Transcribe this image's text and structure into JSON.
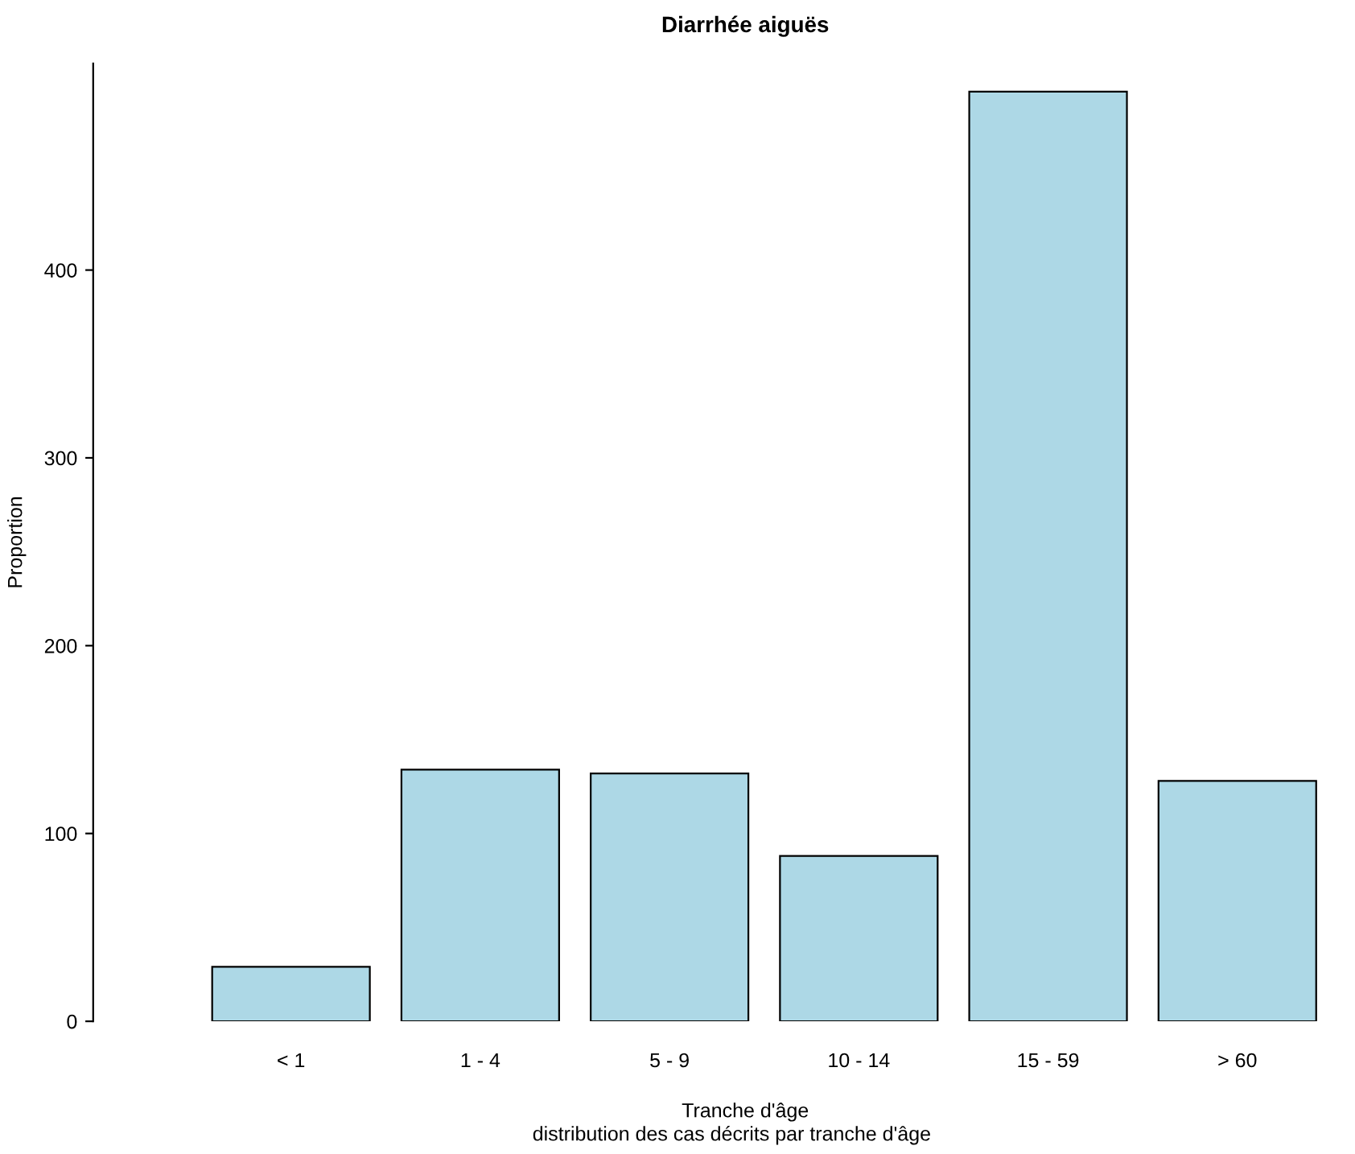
{
  "chart_data": {
    "type": "bar",
    "title": "Diarrhée aiguës",
    "subtitle": "distribution des cas décrits par tranche d'âge",
    "xlabel": "Tranche d'âge",
    "ylabel": "Proportion",
    "categories": [
      "< 1",
      "1 - 4",
      "5 - 9",
      "10 - 14",
      "15 - 59",
      "> 60"
    ],
    "values": [
      29,
      134,
      132,
      88,
      495,
      128
    ],
    "color": "#add8e6",
    "ylim": [
      0,
      510
    ],
    "yticks": [
      0,
      100,
      200,
      300,
      400
    ],
    "grid": false,
    "legend": false
  }
}
